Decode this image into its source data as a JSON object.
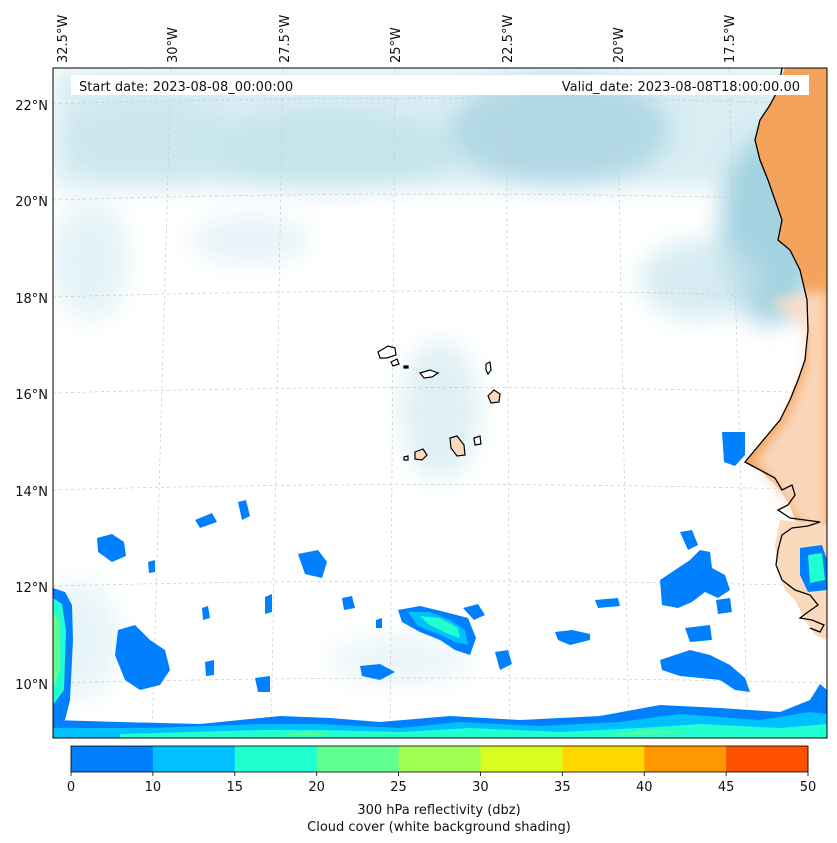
{
  "map": {
    "start_date": "Start date: 2023-08-08_00:00:00",
    "valid_date": "Valid_date: 2023-08-08T18:00:00.00",
    "lon_labels": [
      "32.5°W",
      "30°W",
      "27.5°W",
      "25°W",
      "22.5°W",
      "20°W",
      "17.5°W"
    ],
    "lat_labels": [
      "22°N",
      "20°N",
      "18°N",
      "16°N",
      "14°N",
      "12°N",
      "10°N"
    ]
  },
  "colorbar": {
    "ticks": [
      "0",
      "10",
      "15",
      "20",
      "25",
      "30",
      "35",
      "40",
      "45",
      "50"
    ],
    "colors": [
      "#0080ff",
      "#00c0ff",
      "#20ffd0",
      "#60ff90",
      "#a0ff50",
      "#d8ff20",
      "#ffd800",
      "#ff9800",
      "#ff5000"
    ],
    "label_line1": "300 hPa reflectivity (dbz)",
    "label_line2": "Cloud cover (white background shading)"
  },
  "colors": {
    "land_africa": "#f5a35c",
    "land_light": "#fbd9bd",
    "cloud": "#b9dde8",
    "ocean": "#ffffff"
  }
}
